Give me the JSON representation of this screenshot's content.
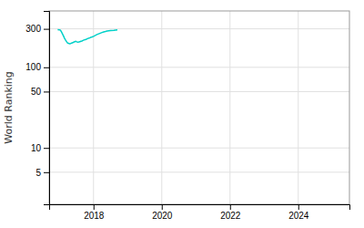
{
  "chart_data": {
    "type": "line",
    "ylabel": "World Ranking",
    "x": [
      2016.95,
      2017.0,
      2017.03,
      2017.06,
      2017.09,
      2017.12,
      2017.15,
      2017.18,
      2017.21,
      2017.24,
      2017.27,
      2017.3,
      2017.33,
      2017.36,
      2017.39,
      2017.42,
      2017.45,
      2017.48,
      2017.51,
      2017.54,
      2017.57,
      2017.6,
      2017.63,
      2017.66,
      2017.69,
      2017.72,
      2017.75,
      2017.78,
      2017.81,
      2017.84,
      2017.87,
      2017.9,
      2017.93,
      2017.96,
      2018.0,
      2018.05,
      2018.1,
      2018.15,
      2018.2,
      2018.25,
      2018.3,
      2018.35,
      2018.4,
      2018.5,
      2018.6,
      2018.7
    ],
    "values": [
      293,
      292,
      288,
      275,
      260,
      245,
      230,
      218,
      208,
      200,
      198,
      196,
      197,
      200,
      202,
      205,
      208,
      210,
      207,
      205,
      206,
      208,
      210,
      212,
      215,
      218,
      220,
      222,
      225,
      228,
      230,
      233,
      236,
      238,
      242,
      248,
      255,
      260,
      265,
      270,
      275,
      278,
      282,
      285,
      288,
      292
    ],
    "color": "#00d0c8",
    "xlim": [
      2016.7,
      2025.5
    ],
    "ylim": [
      2,
      500
    ],
    "xticks": [
      2018,
      2020,
      2022,
      2024
    ],
    "yticks": [
      5,
      10,
      50,
      100,
      300
    ],
    "log": "y",
    "grid": true
  }
}
